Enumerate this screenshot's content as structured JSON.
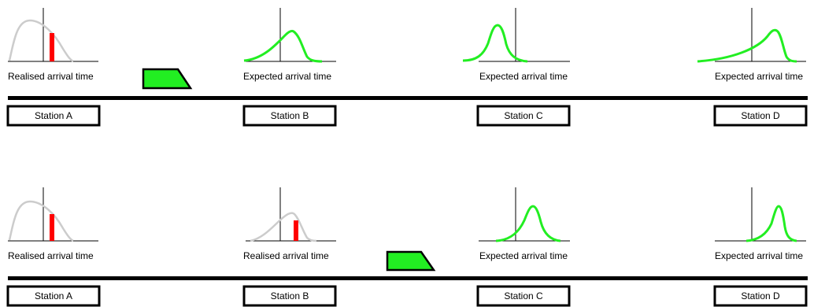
{
  "colors": {
    "expected_curve": "#22ee22",
    "realised_curve": "#cccccc",
    "realised_marker": "#ff0000",
    "train_fill": "#22ee22",
    "line": "#000000"
  },
  "panels": [
    {
      "id": "top",
      "train_between": [
        "Station A",
        "Station B"
      ],
      "stations": [
        {
          "name": "Station A",
          "caption": "Realised arrival time",
          "status": "realised"
        },
        {
          "name": "Station B",
          "caption": "Expected arrival time",
          "status": "expected"
        },
        {
          "name": "Station C",
          "caption": "Expected arrival time",
          "status": "expected"
        },
        {
          "name": "Station D",
          "caption": "Expected arrival time",
          "status": "expected"
        }
      ]
    },
    {
      "id": "bottom",
      "train_between": [
        "Station B",
        "Station C"
      ],
      "stations": [
        {
          "name": "Station A",
          "caption": "Realised arrival time",
          "status": "realised"
        },
        {
          "name": "Station B",
          "caption": "Realised arrival time",
          "status": "realised"
        },
        {
          "name": "Station C",
          "caption": "Expected arrival time",
          "status": "expected"
        },
        {
          "name": "Station D",
          "caption": "Expected arrival time",
          "status": "expected"
        }
      ]
    }
  ]
}
